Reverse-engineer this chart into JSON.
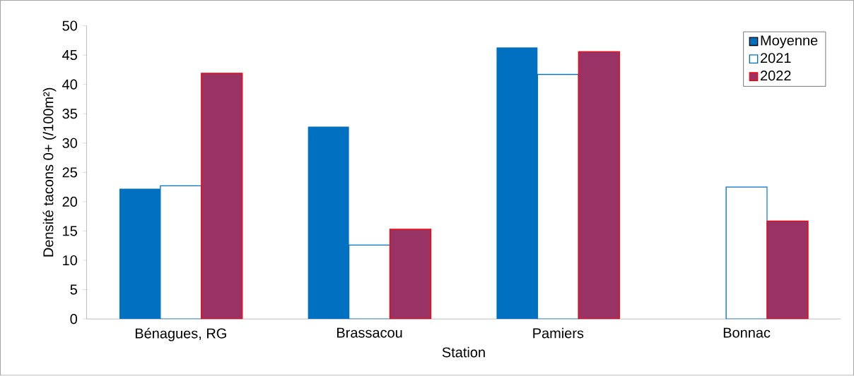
{
  "chart_data": {
    "type": "bar",
    "xlabel": "Station",
    "ylabel": "Densité tacons 0+ (/100m²)",
    "categories": [
      "Bénagues, RG",
      "Brassacou",
      "Pamiers",
      "Bonnac"
    ],
    "series": [
      {
        "name": "Moyenne",
        "color": "#0070c0",
        "values": [
          22.2,
          32.8,
          46.3,
          null
        ]
      },
      {
        "name": "2021",
        "color": "#0070c0",
        "values": [
          22.7,
          12.6,
          41.7,
          22.5
        ]
      },
      {
        "name": "2022",
        "color": "#993366",
        "values": [
          41.9,
          15.3,
          45.6,
          16.7
        ]
      }
    ],
    "ylim": [
      0,
      50
    ],
    "yticks": [
      0,
      5,
      10,
      15,
      20,
      25,
      30,
      35,
      40,
      45,
      50
    ],
    "grid": false,
    "legend": "top right"
  }
}
